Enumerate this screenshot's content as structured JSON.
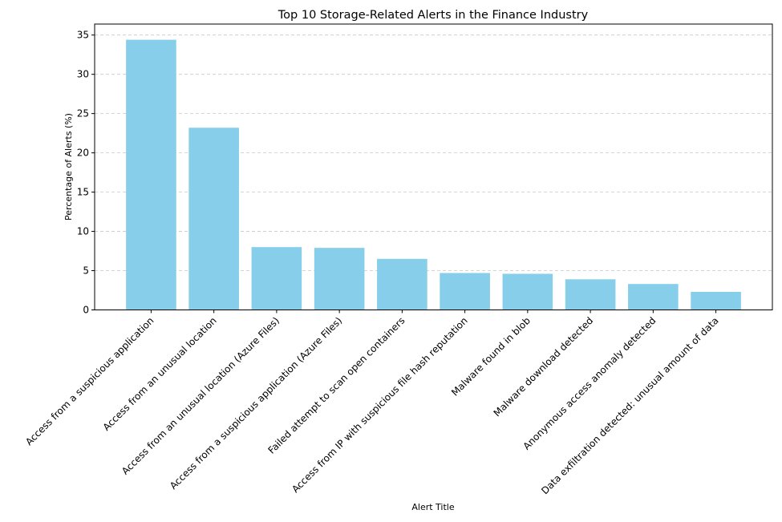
{
  "chart_data": {
    "type": "bar",
    "title": "Top 10 Storage-Related Alerts in the Finance Industry",
    "xlabel": "Alert Title",
    "ylabel": "Percentage of Alerts (%)",
    "ylim": [
      0,
      36.4
    ],
    "yticks": [
      0,
      5,
      10,
      15,
      20,
      25,
      30,
      35
    ],
    "grid": "y dashed",
    "bar_color": "#87ceeb",
    "categories": [
      "Access from a suspicious application",
      "Access from an unusual location",
      "Access from an unusual location (Azure Files)",
      "Access from a suspicious application (Azure Files)",
      "Failed attempt to scan open containers",
      "Access from IP with suspicious file hash reputation",
      "Malware found in blob",
      "Malware download detected",
      "Anonymous access anomaly detected",
      "Data exfiltration detected: unusual amount of data"
    ],
    "values": [
      34.4,
      23.2,
      8.0,
      7.9,
      6.5,
      4.7,
      4.6,
      3.9,
      3.3,
      2.3
    ]
  }
}
